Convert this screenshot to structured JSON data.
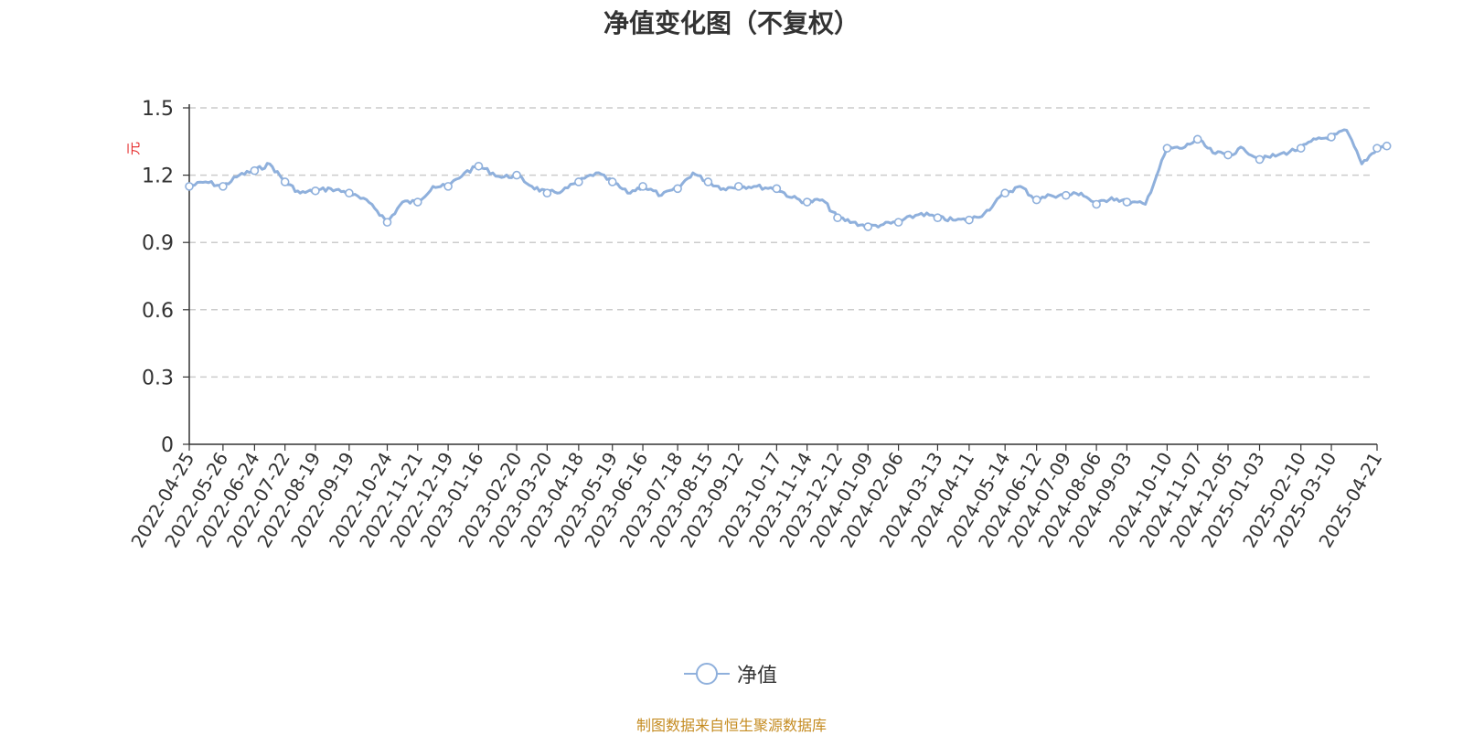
{
  "chart_data": {
    "type": "line",
    "title": "净值变化图（不复权）",
    "y_unit": "元",
    "ylim": [
      0,
      1.5
    ],
    "y_ticks": [
      "0",
      "0.3",
      "0.6",
      "0.9",
      "1.2",
      "1.5"
    ],
    "grid": true,
    "legend_position": "bottom-center",
    "x_tick_labels": [
      "2022-04-25",
      "2022-05-26",
      "2022-06-24",
      "2022-07-22",
      "2022-08-19",
      "2022-09-19",
      "2022-10-24",
      "2022-11-21",
      "2022-12-19",
      "2023-01-16",
      "2023-02-20",
      "2023-03-20",
      "2023-04-18",
      "2023-05-19",
      "2023-06-16",
      "2023-07-18",
      "2023-08-15",
      "2023-09-12",
      "2023-10-17",
      "2023-11-14",
      "2023-12-12",
      "2024-01-09",
      "2024-02-06",
      "2024-03-13",
      "2024-04-11",
      "2024-05-14",
      "2024-06-12",
      "2024-07-09",
      "2024-08-06",
      "2024-09-03",
      "2024-10-10",
      "2024-11-07",
      "2024-12-05",
      "2025-01-03",
      "2025-02-10",
      "2025-03-10",
      "2025-04-21"
    ],
    "series": [
      {
        "name": "净值",
        "color": "#8fb0dc",
        "x": [
          "2022-04-25",
          "2022-05-10",
          "2022-05-26",
          "2022-06-10",
          "2022-06-24",
          "2022-07-08",
          "2022-07-22",
          "2022-08-05",
          "2022-08-19",
          "2022-09-02",
          "2022-09-19",
          "2022-10-10",
          "2022-10-24",
          "2022-11-07",
          "2022-11-21",
          "2022-12-05",
          "2022-12-19",
          "2023-01-03",
          "2023-01-16",
          "2023-02-06",
          "2023-02-20",
          "2023-03-06",
          "2023-03-20",
          "2023-04-03",
          "2023-04-18",
          "2023-05-04",
          "2023-05-19",
          "2023-06-02",
          "2023-06-16",
          "2023-07-03",
          "2023-07-18",
          "2023-08-01",
          "2023-08-15",
          "2023-08-29",
          "2023-09-12",
          "2023-09-26",
          "2023-10-17",
          "2023-10-31",
          "2023-11-14",
          "2023-11-28",
          "2023-12-12",
          "2023-12-26",
          "2024-01-09",
          "2024-01-23",
          "2024-02-06",
          "2024-02-27",
          "2024-03-13",
          "2024-03-27",
          "2024-04-11",
          "2024-04-25",
          "2024-05-14",
          "2024-05-28",
          "2024-06-12",
          "2024-06-25",
          "2024-07-09",
          "2024-07-23",
          "2024-08-06",
          "2024-08-20",
          "2024-09-03",
          "2024-09-20",
          "2024-10-10",
          "2024-10-24",
          "2024-11-07",
          "2024-11-21",
          "2024-12-05",
          "2024-12-19",
          "2025-01-03",
          "2025-01-20",
          "2025-02-10",
          "2025-02-24",
          "2025-03-10",
          "2025-03-24",
          "2025-04-07",
          "2025-04-21",
          "2025-04-30"
        ],
        "values": [
          1.15,
          1.17,
          1.15,
          1.2,
          1.22,
          1.25,
          1.17,
          1.12,
          1.13,
          1.14,
          1.12,
          1.07,
          0.99,
          1.08,
          1.08,
          1.15,
          1.15,
          1.21,
          1.24,
          1.19,
          1.2,
          1.15,
          1.12,
          1.13,
          1.17,
          1.21,
          1.17,
          1.12,
          1.15,
          1.11,
          1.14,
          1.21,
          1.17,
          1.14,
          1.15,
          1.15,
          1.14,
          1.1,
          1.08,
          1.09,
          1.01,
          0.99,
          0.97,
          0.98,
          0.99,
          1.03,
          1.01,
          1.0,
          1.0,
          1.03,
          1.12,
          1.15,
          1.09,
          1.11,
          1.11,
          1.12,
          1.07,
          1.1,
          1.08,
          1.07,
          1.32,
          1.32,
          1.36,
          1.3,
          1.29,
          1.32,
          1.27,
          1.29,
          1.32,
          1.36,
          1.37,
          1.4,
          1.25,
          1.32,
          1.33
        ],
        "marker_x": [
          "2022-04-25",
          "2022-05-26",
          "2022-06-24",
          "2022-07-22",
          "2022-08-19",
          "2022-09-19",
          "2022-10-24",
          "2022-11-21",
          "2022-12-19",
          "2023-01-16",
          "2023-02-20",
          "2023-03-20",
          "2023-04-18",
          "2023-05-19",
          "2023-06-16",
          "2023-07-18",
          "2023-08-15",
          "2023-09-12",
          "2023-10-17",
          "2023-11-14",
          "2023-12-12",
          "2024-01-09",
          "2024-02-06",
          "2024-03-13",
          "2024-04-11",
          "2024-05-14",
          "2024-06-12",
          "2024-07-09",
          "2024-08-06",
          "2024-09-03",
          "2024-10-10",
          "2024-11-07",
          "2024-12-05",
          "2025-01-03",
          "2025-02-10",
          "2025-03-10",
          "2025-04-21",
          "2025-04-30"
        ]
      }
    ]
  },
  "source_note": "制图数据来自恒生聚源数据库"
}
